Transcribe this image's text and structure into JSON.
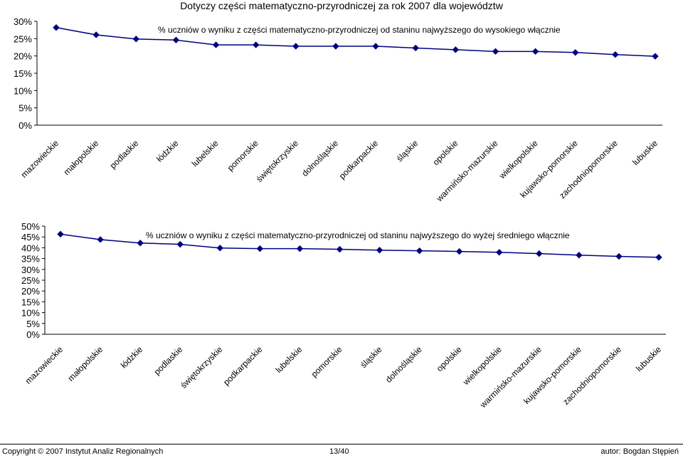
{
  "page": {
    "title": "Dotyczy części matematyczno-przyrodniczej za rok 2007 dla województw"
  },
  "footer": {
    "copyright": "Copyright © 2007 Instytut Analiz Regionalnych",
    "page_number": "13/40",
    "author": "autor: Bogdan Stępień"
  },
  "colors": {
    "series": "#000080"
  },
  "chart_data": [
    {
      "type": "line",
      "title": "% uczniów o wyniku z części matematyczno-przyrodniczej od staninu najwyższego do wysokiego włącznie",
      "categories": [
        "mazowieckie",
        "małopolskie",
        "podlaskie",
        "łódzkie",
        "lubelskie",
        "pomorskie",
        "świętokrzyskie",
        "dolnośląskie",
        "podkarpackie",
        "śląskie",
        "opolskie",
        "warmińsko-mazurskie",
        "wielkopolskie",
        "kujawsko-pomorskie",
        "zachodniopomorskie",
        "lubuskie"
      ],
      "values": [
        28.2,
        26.1,
        24.9,
        24.6,
        23.2,
        23.2,
        22.8,
        22.8,
        22.8,
        22.3,
        21.8,
        21.3,
        21.3,
        21.0,
        20.4,
        19.9
      ],
      "yticks": [
        "0%",
        "5%",
        "10%",
        "15%",
        "20%",
        "25%",
        "30%"
      ],
      "ylim": [
        0,
        30
      ],
      "grid": false,
      "marker": "diamond"
    },
    {
      "type": "line",
      "title": "% uczniów o wyniku z części matematyczno-przyrodniczej od staninu najwyższego do wyżej średniego włącznie",
      "categories": [
        "mazowieckie",
        "małopolskie",
        "łódzkie",
        "podlaskie",
        "świętokrzyskie",
        "podkarpackie",
        "lubelskie",
        "pomorskie",
        "śląskie",
        "dolnośląskie",
        "opolskie",
        "wielkopolskie",
        "warmińsko-mazurskie",
        "kujawsko-pomorskie",
        "zachodniopomorskie",
        "lubuskie"
      ],
      "values": [
        46.3,
        43.8,
        42.2,
        41.6,
        39.9,
        39.6,
        39.6,
        39.3,
        38.9,
        38.6,
        38.3,
        37.9,
        37.3,
        36.6,
        36.0,
        35.6
      ],
      "yticks": [
        "0%",
        "5%",
        "10%",
        "15%",
        "20%",
        "25%",
        "30%",
        "35%",
        "40%",
        "45%",
        "50%"
      ],
      "ylim": [
        0,
        50
      ],
      "grid": false,
      "marker": "diamond"
    }
  ]
}
